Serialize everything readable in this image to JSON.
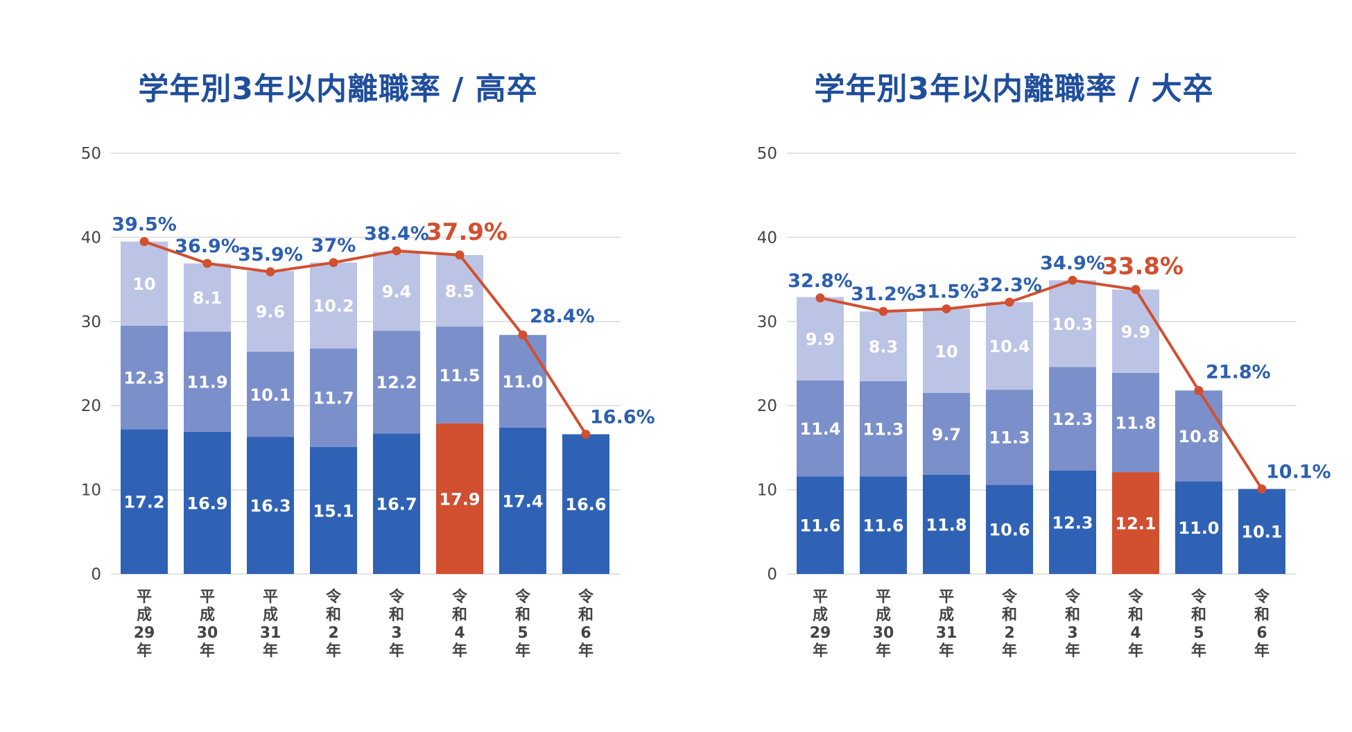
{
  "colors": {
    "bottom": "#2f62b5",
    "middle": "#7b8fca",
    "top": "#bcc4e5",
    "highlight": "#d24f2f",
    "line": "#d24f2f",
    "total_label": "#2c5fb0",
    "axis_text": "#444444",
    "grid": "#d9d9d9"
  },
  "chart_data": [
    {
      "type": "bar",
      "stacked": true,
      "title": "学年別3年以内離職率 / 高卒",
      "categories": [
        [
          "平",
          "成",
          "29",
          "年"
        ],
        [
          "平",
          "成",
          "30",
          "年"
        ],
        [
          "平",
          "成",
          "31",
          "年"
        ],
        [
          "令",
          "和",
          "2",
          "年"
        ],
        [
          "令",
          "和",
          "3",
          "年"
        ],
        [
          "令",
          "和",
          "4",
          "年"
        ],
        [
          "令",
          "和",
          "5",
          "年"
        ],
        [
          "令",
          "和",
          "6",
          "年"
        ]
      ],
      "series": [
        {
          "values": [
            17.2,
            16.9,
            16.3,
            15.1,
            16.7,
            17.9,
            17.4,
            16.6
          ],
          "labels": [
            "17.2",
            "16.9",
            "16.3",
            "15.1",
            "16.7",
            "17.9",
            "17.4",
            "16.6"
          ]
        },
        {
          "values": [
            12.3,
            11.9,
            10.1,
            11.7,
            12.2,
            11.5,
            11.0,
            null
          ],
          "labels": [
            "12.3",
            "11.9",
            "10.1",
            "11.7",
            "12.2",
            "11.5",
            "11.0",
            ""
          ]
        },
        {
          "values": [
            10,
            8.1,
            9.6,
            10.2,
            9.4,
            8.5,
            null,
            null
          ],
          "labels": [
            "10",
            "8.1",
            "9.6",
            "10.2",
            "9.4",
            "8.5",
            "",
            ""
          ]
        }
      ],
      "totals": [
        39.5,
        36.9,
        35.9,
        37,
        38.4,
        37.9,
        28.4,
        16.6
      ],
      "total_labels": [
        "39.5%",
        "36.9%",
        "35.9%",
        "37%",
        "38.4%",
        "37.9%",
        "28.4%",
        "16.6%"
      ],
      "highlight_index": 5,
      "ylim": [
        0,
        50
      ],
      "yticks": [
        "0",
        "10",
        "20",
        "30",
        "40",
        "50"
      ],
      "grid": true
    },
    {
      "type": "bar",
      "stacked": true,
      "title": "学年別3年以内離職率 / 大卒",
      "categories": [
        [
          "平",
          "成",
          "29",
          "年"
        ],
        [
          "平",
          "成",
          "30",
          "年"
        ],
        [
          "平",
          "成",
          "31",
          "年"
        ],
        [
          "令",
          "和",
          "2",
          "年"
        ],
        [
          "令",
          "和",
          "3",
          "年"
        ],
        [
          "令",
          "和",
          "4",
          "年"
        ],
        [
          "令",
          "和",
          "5",
          "年"
        ],
        [
          "令",
          "和",
          "6",
          "年"
        ]
      ],
      "series": [
        {
          "values": [
            11.6,
            11.6,
            11.8,
            10.6,
            12.3,
            12.1,
            11.0,
            10.1
          ],
          "labels": [
            "11.6",
            "11.6",
            "11.8",
            "10.6",
            "12.3",
            "12.1",
            "11.0",
            "10.1"
          ]
        },
        {
          "values": [
            11.4,
            11.3,
            9.7,
            11.3,
            12.3,
            11.8,
            10.8,
            null
          ],
          "labels": [
            "11.4",
            "11.3",
            "9.7",
            "11.3",
            "12.3",
            "11.8",
            "10.8",
            ""
          ]
        },
        {
          "values": [
            9.9,
            8.3,
            10,
            10.4,
            10.3,
            9.9,
            null,
            null
          ],
          "labels": [
            "9.9",
            "8.3",
            "10",
            "10.4",
            "10.3",
            "9.9",
            "",
            ""
          ]
        }
      ],
      "totals": [
        32.8,
        31.2,
        31.5,
        32.3,
        34.9,
        33.8,
        21.8,
        10.1
      ],
      "total_labels": [
        "32.8%",
        "31.2%",
        "31.5%",
        "32.3%",
        "34.9%",
        "33.8%",
        "21.8%",
        "10.1%"
      ],
      "highlight_index": 5,
      "ylim": [
        0,
        50
      ],
      "yticks": [
        "0",
        "10",
        "20",
        "30",
        "40",
        "50"
      ],
      "grid": true
    }
  ]
}
